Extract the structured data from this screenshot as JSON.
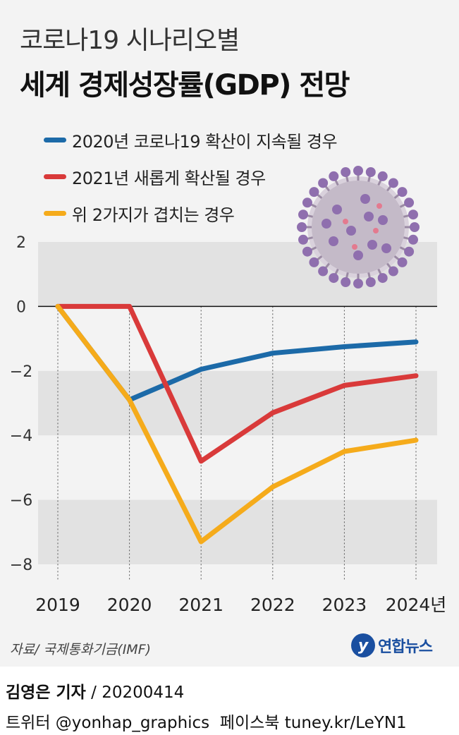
{
  "title": {
    "line1": "코로나19 시나리오별",
    "line2": "세계 경제성장률(GDP) 전망"
  },
  "chart_data": {
    "type": "line",
    "title": "세계 경제성장률(GDP) 전망",
    "xlabel": "",
    "ylabel": "",
    "x": [
      2019,
      2020,
      2021,
      2022,
      2023,
      2024
    ],
    "x_tick_labels": [
      "2019",
      "2020",
      "2021",
      "2022",
      "2023",
      "2024년"
    ],
    "y_ticks": [
      2,
      0,
      -2,
      -4,
      -6,
      -8
    ],
    "y_tick_labels": [
      "2",
      "0",
      "−2",
      "−4",
      "−6",
      "−8"
    ],
    "ylim": [
      -8,
      2
    ],
    "grid": "alternating horizontal bands",
    "legend_position": "top-left",
    "series": [
      {
        "name": "2020년 코로나19 확산이 지속될 경우",
        "color": "#1c6aa8",
        "values": [
          0,
          -2.9,
          -1.95,
          -1.45,
          -1.25,
          -1.1
        ]
      },
      {
        "name": "2021년 새롭게 확산될 경우",
        "color": "#d93a3a",
        "values": [
          0,
          0,
          -4.8,
          -3.3,
          -2.45,
          -2.15
        ]
      },
      {
        "name": "위 2가지가 겹치는 경우",
        "color": "#f5ab1b",
        "values": [
          0,
          -2.9,
          -7.3,
          -5.6,
          -4.5,
          -4.15
        ]
      }
    ]
  },
  "source": "자료/ 국제통화기금(IMF)",
  "logo": {
    "text": "연합뉴스"
  },
  "footer": {
    "reporter": "김영은 기자",
    "separator": " / ",
    "date": "20200414",
    "twitter": "트위터 @yonhap_graphics",
    "facebook": "페이스북 tuney.kr/LeYN1"
  }
}
